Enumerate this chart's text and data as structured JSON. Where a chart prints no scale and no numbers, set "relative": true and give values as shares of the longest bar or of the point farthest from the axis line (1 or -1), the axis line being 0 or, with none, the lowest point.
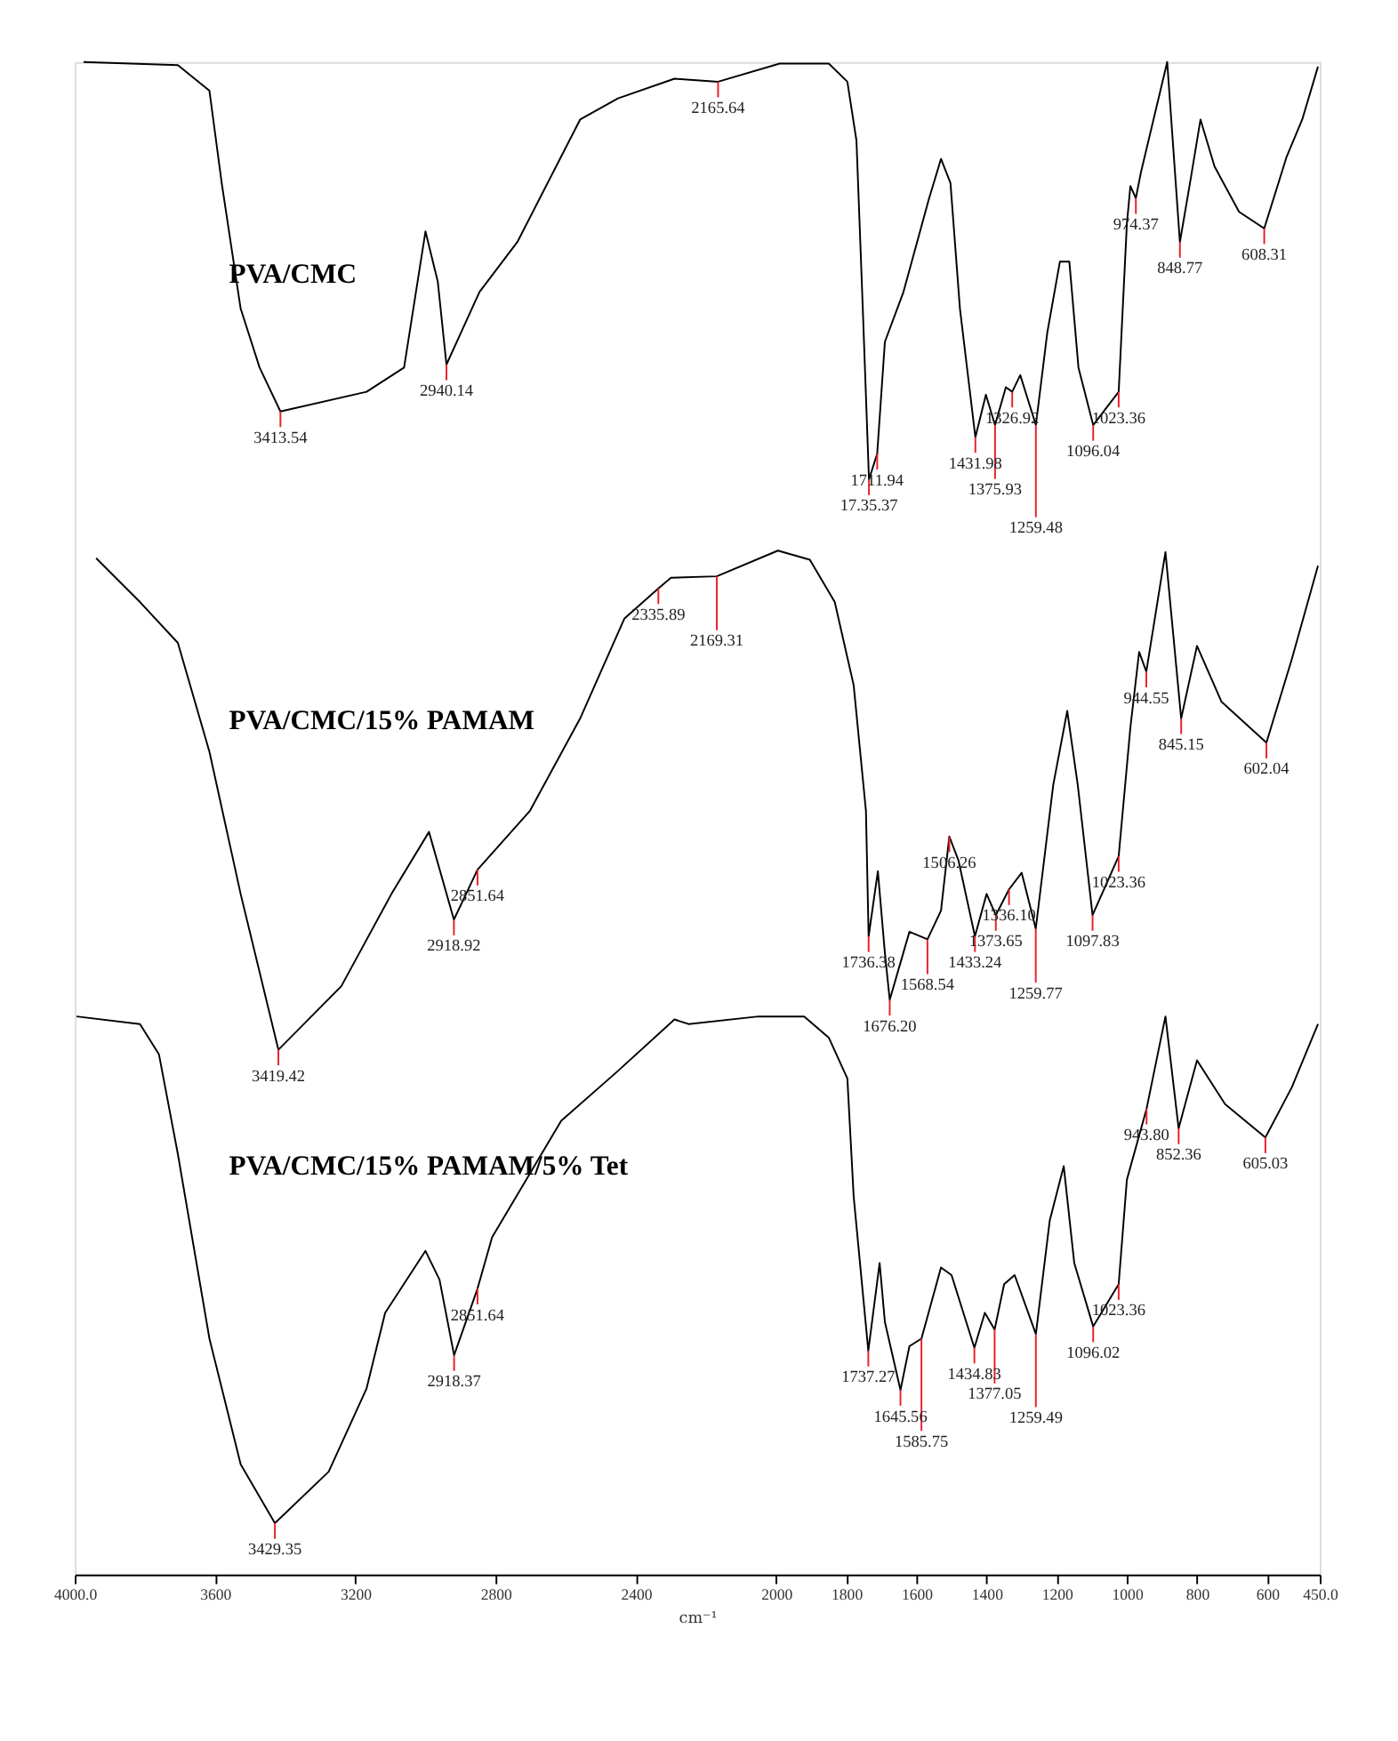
{
  "chart_data": {
    "type": "line",
    "relative": true,
    "xlabel": "cm⁻¹",
    "xlim": [
      4000,
      450
    ],
    "xticks": [
      {
        "value": 4000,
        "label": "4000.0"
      },
      3600,
      3200,
      2800,
      2400,
      2000,
      1800,
      1600,
      1400,
      1200,
      1000,
      800,
      600,
      {
        "value": 450,
        "label": "450.0"
      }
    ],
    "marker": "none",
    "line_style": "solid",
    "series": [
      {
        "name": "PVA/CMC",
        "color": "#000000",
        "x": [
          3975,
          3706,
          3616,
          3581,
          3527,
          3473,
          3413.54,
          3168,
          3061,
          3000,
          2965,
          2940.14,
          2846,
          2738,
          2559,
          2451,
          2290,
          2165.64,
          1990,
          1850,
          1797,
          1771,
          1753,
          1735.37,
          1711.94,
          1690,
          1637,
          1565,
          1530,
          1503,
          1476,
          1431.98,
          1402,
          1375.93,
          1345,
          1326.92,
          1304,
          1259.48,
          1227,
          1191,
          1164,
          1138,
          1096.04,
          1023.36,
          1000,
          990,
          974.37,
          960,
          885,
          848.77,
          820,
          790,
          750,
          680,
          608.31,
          545,
          500,
          455
        ],
        "values": [
          1.0,
          0.998,
          0.981,
          0.92,
          0.837,
          0.798,
          0.769,
          0.782,
          0.798,
          0.888,
          0.855,
          0.8,
          0.848,
          0.881,
          0.962,
          0.976,
          0.989,
          0.987,
          0.999,
          0.999,
          0.987,
          0.948,
          0.837,
          0.724,
          0.741,
          0.815,
          0.848,
          0.909,
          0.936,
          0.92,
          0.837,
          0.752,
          0.78,
          0.76,
          0.785,
          0.782,
          0.793,
          0.76,
          0.821,
          0.868,
          0.868,
          0.798,
          0.76,
          0.782,
          0.893,
          0.918,
          0.91,
          0.927,
          1.0,
          0.881,
          0.92,
          0.962,
          0.931,
          0.901,
          0.89,
          0.937,
          0.962,
          0.997
        ]
      },
      {
        "name": "PVA/CMC/15% PAMAM",
        "color": "#000000",
        "x": [
          3939,
          3814,
          3706,
          3616,
          3527,
          3419.42,
          3240,
          3097,
          2990,
          2918.92,
          2851.64,
          2702,
          2559,
          2433,
          2335.89,
          2300,
          2169.31,
          1995,
          1904,
          1833,
          1779,
          1744,
          1736.38,
          1710,
          1690,
          1676.2,
          1620,
          1568.54,
          1530,
          1506.26,
          1480,
          1433.24,
          1400,
          1373.65,
          1336.1,
          1300,
          1259.77,
          1210,
          1170,
          1140,
          1097.83,
          1023.36,
          990,
          965,
          944.55,
          890,
          845.15,
          800,
          730,
          602.04,
          530,
          455
        ],
        "values": [
          0.672,
          0.643,
          0.616,
          0.544,
          0.45,
          0.347,
          0.389,
          0.45,
          0.491,
          0.433,
          0.466,
          0.505,
          0.566,
          0.632,
          0.652,
          0.659,
          0.66,
          0.677,
          0.671,
          0.643,
          0.588,
          0.505,
          0.422,
          0.465,
          0.411,
          0.38,
          0.425,
          0.42,
          0.439,
          0.488,
          0.472,
          0.422,
          0.45,
          0.436,
          0.453,
          0.464,
          0.427,
          0.522,
          0.571,
          0.522,
          0.436,
          0.475,
          0.56,
          0.61,
          0.597,
          0.676,
          0.566,
          0.614,
          0.577,
          0.55,
          0.605,
          0.667
        ]
      },
      {
        "name": "PVA/CMC/15% PAMAM/5% Tet",
        "color": "#000000",
        "x": [
          3995,
          3814,
          3760,
          3706,
          3616,
          3527,
          3429.35,
          3276,
          3168,
          3115,
          3000,
          2960,
          2918.37,
          2851.64,
          2810,
          2613,
          2451,
          2290,
          2250,
          2050,
          1920,
          1850,
          1797,
          1779,
          1737.27,
          1705,
          1690,
          1645.56,
          1620,
          1585.75,
          1530,
          1500,
          1434.83,
          1405,
          1377.05,
          1350,
          1320,
          1259.49,
          1220,
          1180,
          1150,
          1096.02,
          1023.36,
          1000,
          943.8,
          890,
          852.36,
          800,
          720,
          605.03,
          530,
          455
        ],
        "values": [
          0.369,
          0.364,
          0.344,
          0.278,
          0.156,
          0.073,
          0.034,
          0.068,
          0.123,
          0.173,
          0.214,
          0.195,
          0.145,
          0.189,
          0.223,
          0.3,
          0.333,
          0.367,
          0.364,
          0.369,
          0.369,
          0.355,
          0.328,
          0.25,
          0.148,
          0.206,
          0.167,
          0.122,
          0.151,
          0.156,
          0.203,
          0.198,
          0.15,
          0.173,
          0.162,
          0.192,
          0.198,
          0.159,
          0.234,
          0.27,
          0.206,
          0.164,
          0.192,
          0.261,
          0.308,
          0.369,
          0.295,
          0.34,
          0.311,
          0.289,
          0.322,
          0.364
        ]
      }
    ],
    "annotations": [
      {
        "text": "3413.54",
        "x": 3413.54,
        "y": 0.769
      },
      {
        "text": "2940.14",
        "x": 2940.14,
        "y": 0.8
      },
      {
        "text": "2165.64",
        "x": 2165.64,
        "y": 0.987
      },
      {
        "text": "17.35.37",
        "x": 1735.37,
        "y": 0.724
      },
      {
        "text": "1711.94",
        "x": 1711.94,
        "y": 0.741
      },
      {
        "text": "1431.98",
        "x": 1431.98,
        "y": 0.752
      },
      {
        "text": "1375.93",
        "x": 1375.93,
        "y": 0.76
      },
      {
        "text": "1326.92",
        "x": 1326.92,
        "y": 0.782
      },
      {
        "text": "1259.48",
        "x": 1259.48,
        "y": 0.76
      },
      {
        "text": "1096.04",
        "x": 1096.04,
        "y": 0.76
      },
      {
        "text": "1023.36",
        "x": 1023.36,
        "y": 0.782
      },
      {
        "text": "974.37",
        "x": 974.37,
        "y": 0.91
      },
      {
        "text": "848.77",
        "x": 848.77,
        "y": 0.881
      },
      {
        "text": "608.31",
        "x": 608.31,
        "y": 0.89
      },
      {
        "text": "3419.42",
        "x": 3419.42,
        "y": 0.347
      },
      {
        "text": "2918.92",
        "x": 2918.92,
        "y": 0.433
      },
      {
        "text": "2851.64",
        "x": 2851.64,
        "y": 0.466
      },
      {
        "text": "2335.89",
        "x": 2335.89,
        "y": 0.652
      },
      {
        "text": "2169.31",
        "x": 2169.31,
        "y": 0.66
      },
      {
        "text": "1736.38",
        "x": 1736.38,
        "y": 0.422
      },
      {
        "text": "1676.20",
        "x": 1676.2,
        "y": 0.38
      },
      {
        "text": "1568.54",
        "x": 1568.54,
        "y": 0.42
      },
      {
        "text": "1506.26",
        "x": 1506.26,
        "y": 0.488
      },
      {
        "text": "1433.24",
        "x": 1433.24,
        "y": 0.422
      },
      {
        "text": "1373.65",
        "x": 1373.65,
        "y": 0.436
      },
      {
        "text": "1336.10",
        "x": 1336.1,
        "y": 0.453
      },
      {
        "text": "1259.77",
        "x": 1259.77,
        "y": 0.427
      },
      {
        "text": "1097.83",
        "x": 1097.83,
        "y": 0.436
      },
      {
        "text": "1023.36",
        "x": 1023.36,
        "y": 0.475
      },
      {
        "text": "944.55",
        "x": 944.55,
        "y": 0.597
      },
      {
        "text": "845.15",
        "x": 845.15,
        "y": 0.566
      },
      {
        "text": "602.04",
        "x": 602.04,
        "y": 0.55
      },
      {
        "text": "3429.35",
        "x": 3429.35,
        "y": 0.034
      },
      {
        "text": "2918.37",
        "x": 2918.37,
        "y": 0.145
      },
      {
        "text": "2851.64",
        "x": 2851.64,
        "y": 0.189
      },
      {
        "text": "1737.27",
        "x": 1737.27,
        "y": 0.148
      },
      {
        "text": "1645.56",
        "x": 1645.56,
        "y": 0.122
      },
      {
        "text": "1585.75",
        "x": 1585.75,
        "y": 0.156
      },
      {
        "text": "1434.83",
        "x": 1434.83,
        "y": 0.15
      },
      {
        "text": "1377.05",
        "x": 1377.05,
        "y": 0.162
      },
      {
        "text": "1259.49",
        "x": 1259.49,
        "y": 0.159
      },
      {
        "text": "1096.02",
        "x": 1096.02,
        "y": 0.164
      },
      {
        "text": "1023.36",
        "x": 1023.36,
        "y": 0.192
      },
      {
        "text": "943.80",
        "x": 943.8,
        "y": 0.308
      },
      {
        "text": "852.36",
        "x": 852.36,
        "y": 0.295
      },
      {
        "text": "605.03",
        "x": 605.03,
        "y": 0.289
      }
    ]
  }
}
